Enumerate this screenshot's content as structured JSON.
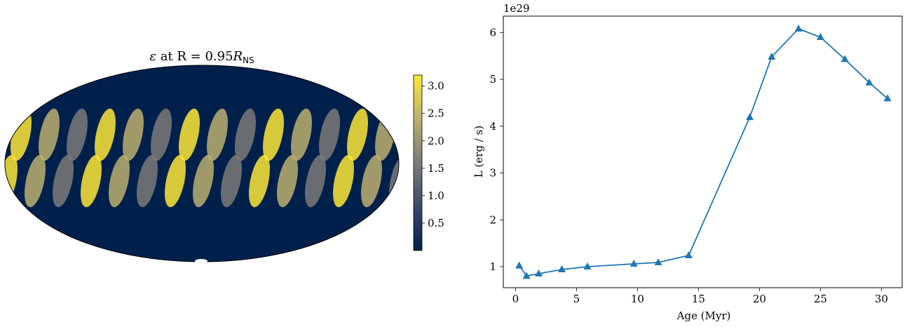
{
  "chart_data": [
    {
      "type": "heatmap",
      "projection": "mollweide",
      "title": "ε at R = 0.95R_NS",
      "title_parts": {
        "symbol": "ε",
        "middle": " at R = 0.95",
        "var": "R",
        "sub": "NS"
      },
      "colormap": [
        "#00204c",
        "#3b4a6c",
        "#7b7b78",
        "#bcaf6f",
        "#fde737"
      ],
      "colorbar": {
        "ticks": [
          "0.5",
          "1.0",
          "1.5",
          "2.0",
          "2.5",
          "3.0"
        ],
        "tick_values": [
          0.5,
          1.0,
          1.5,
          2.0,
          2.5,
          3.0
        ],
        "range": [
          0.0,
          3.2
        ]
      },
      "grid": false
    },
    {
      "type": "line",
      "marker": "triangle-up",
      "color": "#1f77b4",
      "xlabel": "Age (Myr)",
      "ylabel": "L (erg / s)",
      "offset_text": "1e29",
      "xlim": [
        -1.0,
        31.7
      ],
      "ylim": [
        0.55,
        6.35
      ],
      "xticks": [
        0,
        5,
        10,
        15,
        20,
        25,
        30
      ],
      "yticks": [
        1,
        2,
        3,
        4,
        5,
        6
      ],
      "grid": false,
      "series": [
        {
          "x": [
            0.3,
            0.9,
            1.9,
            3.8,
            5.9,
            9.7,
            11.7,
            14.2,
            19.2,
            21.0,
            23.2,
            25.0,
            27.0,
            29.0,
            30.5
          ],
          "y": [
            1.02,
            0.8,
            0.85,
            0.94,
            1.0,
            1.06,
            1.09,
            1.24,
            4.19,
            5.48,
            6.08,
            5.9,
            5.43,
            4.93,
            4.59
          ]
        }
      ]
    }
  ]
}
